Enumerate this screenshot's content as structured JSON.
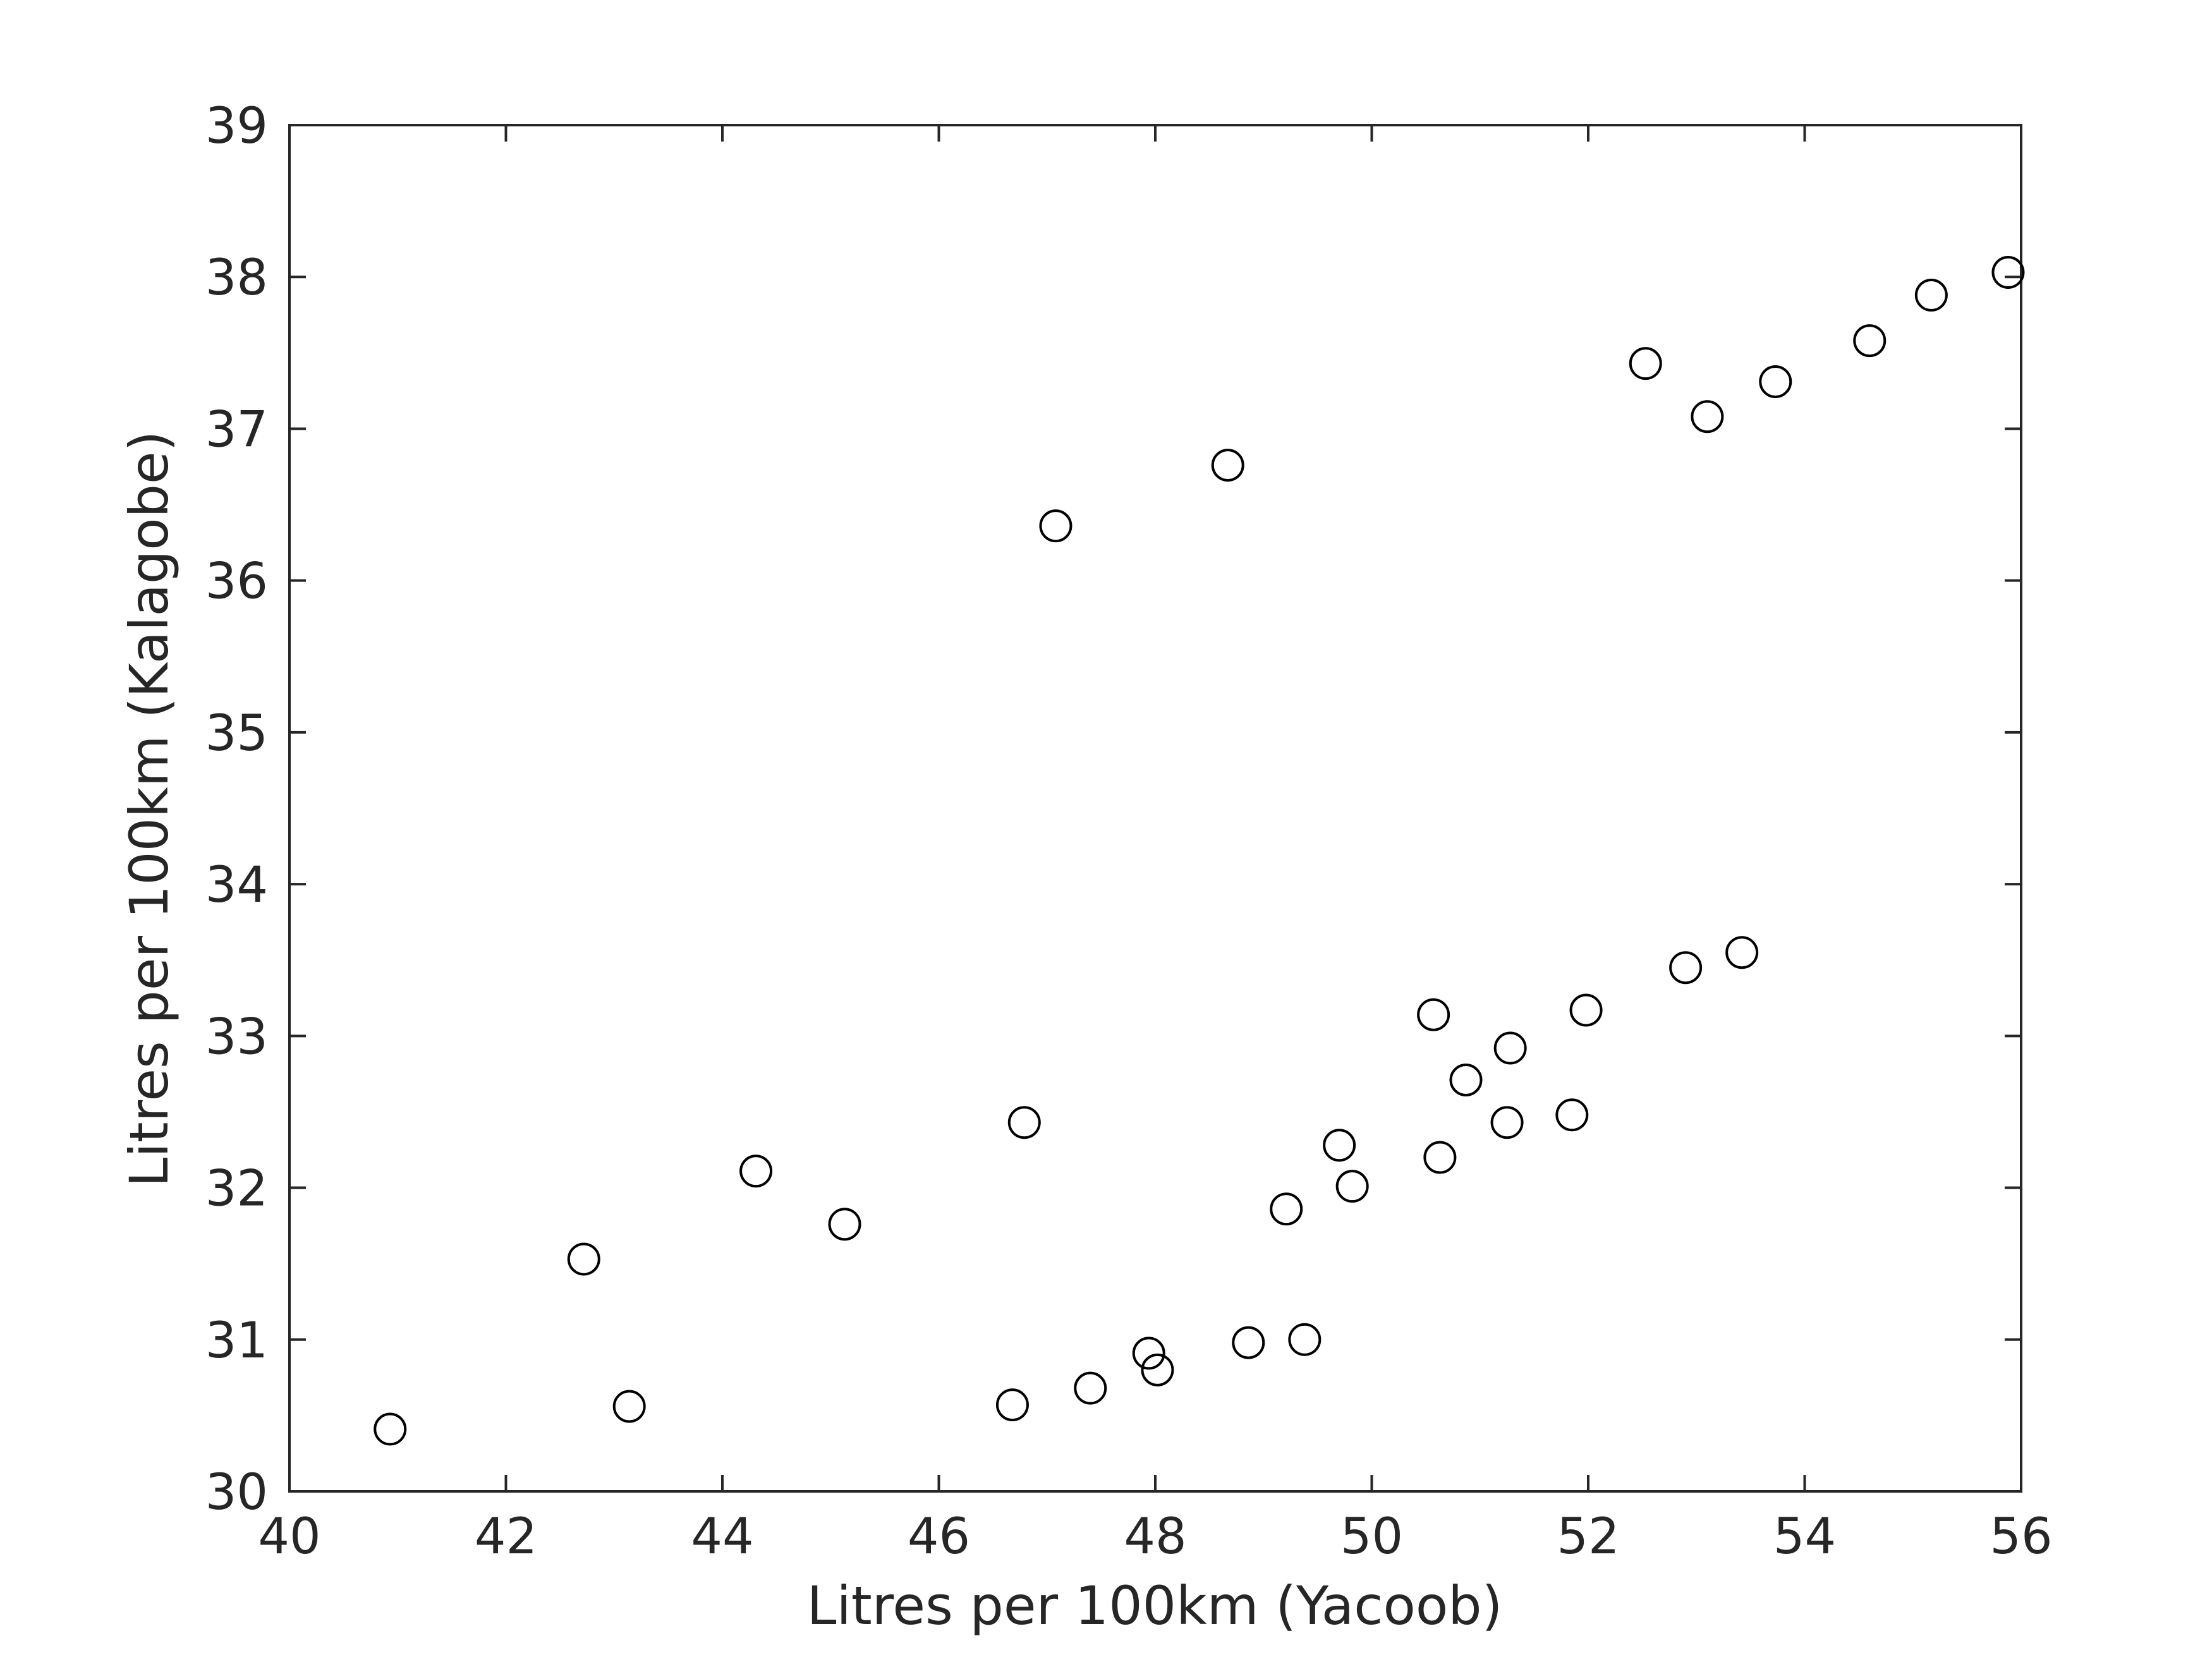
{
  "chart_data": {
    "type": "scatter",
    "title": "",
    "xlabel": "Litres per 100km (Yacoob)",
    "ylabel": "Litres per 100km (Kalagobe)",
    "xlim": [
      40,
      56
    ],
    "ylim": [
      30,
      39
    ],
    "xticks": [
      "40",
      "42",
      "44",
      "46",
      "48",
      "50",
      "52",
      "54",
      "56"
    ],
    "yticks": [
      "30",
      "31",
      "32",
      "33",
      "34",
      "35",
      "36",
      "37",
      "38",
      "39"
    ],
    "grid": false,
    "marker": "open-circle",
    "marker_color": "#000000",
    "points": [
      {
        "x": 40.93,
        "y": 30.41
      },
      {
        "x": 42.72,
        "y": 31.53
      },
      {
        "x": 43.14,
        "y": 30.56
      },
      {
        "x": 44.31,
        "y": 32.11
      },
      {
        "x": 45.13,
        "y": 31.76
      },
      {
        "x": 46.68,
        "y": 30.57
      },
      {
        "x": 46.79,
        "y": 32.43
      },
      {
        "x": 47.08,
        "y": 36.36
      },
      {
        "x": 47.4,
        "y": 30.68
      },
      {
        "x": 47.94,
        "y": 30.91
      },
      {
        "x": 48.02,
        "y": 30.8
      },
      {
        "x": 48.67,
        "y": 36.76
      },
      {
        "x": 48.86,
        "y": 30.98
      },
      {
        "x": 49.21,
        "y": 31.86
      },
      {
        "x": 49.38,
        "y": 31.0
      },
      {
        "x": 49.7,
        "y": 32.28
      },
      {
        "x": 49.82,
        "y": 32.01
      },
      {
        "x": 50.57,
        "y": 33.14
      },
      {
        "x": 50.63,
        "y": 32.2
      },
      {
        "x": 50.87,
        "y": 32.71
      },
      {
        "x": 51.25,
        "y": 32.43
      },
      {
        "x": 51.28,
        "y": 32.92
      },
      {
        "x": 51.85,
        "y": 32.48
      },
      {
        "x": 51.98,
        "y": 33.17
      },
      {
        "x": 52.53,
        "y": 37.43
      },
      {
        "x": 52.9,
        "y": 33.45
      },
      {
        "x": 53.1,
        "y": 37.08
      },
      {
        "x": 53.42,
        "y": 33.55
      },
      {
        "x": 53.73,
        "y": 37.31
      },
      {
        "x": 54.6,
        "y": 37.58
      },
      {
        "x": 55.17,
        "y": 37.88
      },
      {
        "x": 55.88,
        "y": 38.03
      }
    ]
  }
}
